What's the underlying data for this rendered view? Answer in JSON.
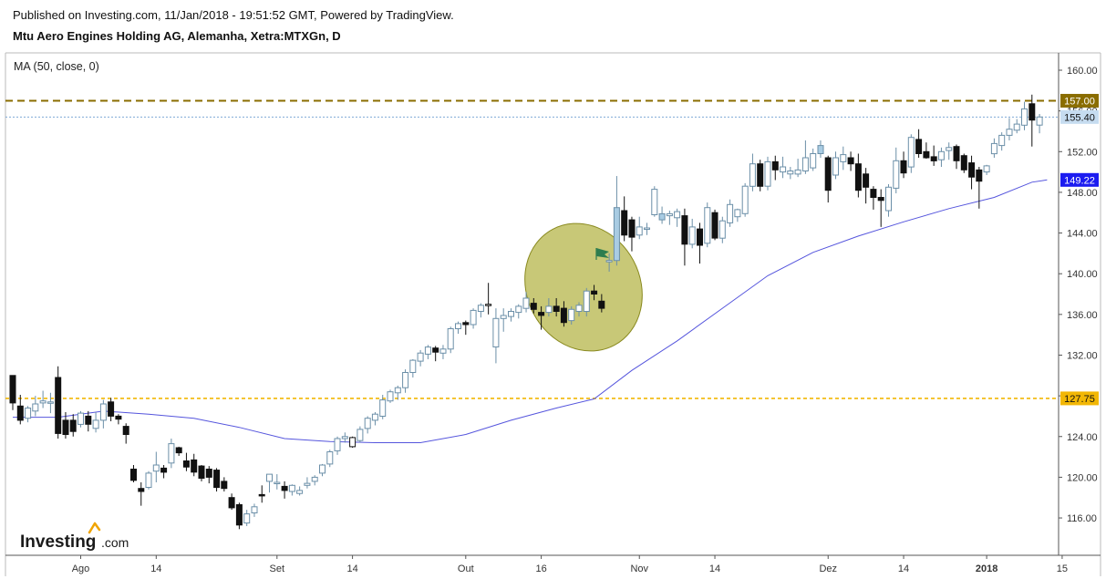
{
  "header": {
    "published": "Published on Investing.com, 11/Jan/2018 - 19:51:52 GMT, Powered by TradingView.",
    "title": "Mtu Aero Engines Holding AG, Alemanha, Xetra:MTXGn, D"
  },
  "indicator_label": "MA (50, close, 0)",
  "logo": {
    "word": "Investing",
    "suffix": ".com"
  },
  "colors": {
    "up_fill": "#ffffff",
    "up_blue_fill": "#a9cce3",
    "candle_border": "#6b8fa8",
    "down_fill": "#111111",
    "ma_line": "#5555dd",
    "resistance_line": "#8a6d00",
    "support_line": "#f2b705",
    "last_price_line": "#7fa9d8",
    "ellipse_fill": "#b5b54a",
    "flag": "#2e7d4f"
  },
  "chart_data": {
    "type": "candlestick",
    "ylim": [
      112,
      162
    ],
    "y_ticks": [
      116,
      120,
      124,
      128,
      132,
      136,
      140,
      144,
      148,
      152,
      156,
      160
    ],
    "x_ticks": [
      {
        "label": "Ago",
        "i": 9
      },
      {
        "label": "14",
        "i": 19
      },
      {
        "label": "Set",
        "i": 35
      },
      {
        "label": "14",
        "i": 45
      },
      {
        "label": "Out",
        "i": 60
      },
      {
        "label": "16",
        "i": 70
      },
      {
        "label": "Nov",
        "i": 83
      },
      {
        "label": "14",
        "i": 93
      },
      {
        "label": "Dez",
        "i": 108
      },
      {
        "label": "14",
        "i": 118
      },
      {
        "label": "2018",
        "i": 129
      },
      {
        "label": "15",
        "i": 139
      }
    ],
    "horizontal_lines": [
      {
        "price": 157.0,
        "label": "157.00",
        "style": "dashed"
      },
      {
        "price": 155.4,
        "label": "155.40",
        "style": "dotted"
      },
      {
        "price": 127.75,
        "label": "127.75",
        "style": "dashed"
      }
    ],
    "ma_last_label": "149.22",
    "candles": [
      {
        "o": 130.0,
        "h": 130.0,
        "c": 127.3,
        "l": 126.6
      },
      {
        "o": 127.0,
        "h": 128.1,
        "c": 125.6,
        "l": 125.2
      },
      {
        "o": 125.8,
        "h": 127.0,
        "c": 126.8,
        "l": 125.4
      },
      {
        "o": 126.5,
        "h": 128.0,
        "c": 127.2,
        "l": 126.0
      },
      {
        "o": 127.3,
        "h": 128.5,
        "c": 127.5,
        "l": 126.8
      },
      {
        "o": 127.4,
        "h": 128.3,
        "c": 127.4,
        "l": 126.3
      },
      {
        "o": 129.8,
        "h": 130.9,
        "c": 124.3,
        "l": 123.8
      },
      {
        "o": 125.6,
        "h": 126.4,
        "c": 124.2,
        "l": 123.8
      },
      {
        "o": 125.6,
        "h": 126.2,
        "c": 124.5,
        "l": 124.0
      },
      {
        "o": 125.2,
        "h": 126.5,
        "c": 126.3,
        "l": 124.9
      },
      {
        "o": 126.0,
        "h": 126.5,
        "c": 125.2,
        "l": 124.5
      },
      {
        "o": 124.8,
        "h": 126.4,
        "c": 125.6,
        "l": 124.4
      },
      {
        "o": 125.6,
        "h": 127.6,
        "c": 127.2,
        "l": 124.8
      },
      {
        "o": 127.4,
        "h": 127.8,
        "c": 126.0,
        "l": 125.5
      },
      {
        "o": 126.0,
        "h": 126.2,
        "c": 125.7,
        "l": 125.2
      },
      {
        "o": 125.0,
        "h": 125.3,
        "c": 124.2,
        "l": 123.3
      },
      {
        "o": 120.8,
        "h": 121.2,
        "c": 119.7,
        "l": 119.5
      },
      {
        "o": 118.9,
        "h": 119.5,
        "c": 118.6,
        "l": 117.2
      },
      {
        "o": 119.0,
        "h": 120.6,
        "c": 120.4,
        "l": 118.8
      },
      {
        "o": 120.6,
        "h": 122.5,
        "c": 121.2,
        "l": 119.5
      },
      {
        "o": 120.9,
        "h": 121.2,
        "c": 120.5,
        "l": 119.9
      },
      {
        "o": 121.4,
        "h": 123.8,
        "c": 123.3,
        "l": 120.9
      },
      {
        "o": 122.9,
        "h": 123.0,
        "c": 122.4,
        "l": 122.1
      },
      {
        "o": 121.6,
        "h": 122.4,
        "c": 121.0,
        "l": 120.6
      },
      {
        "o": 121.7,
        "h": 122.3,
        "c": 120.5,
        "l": 120.1
      },
      {
        "o": 121.1,
        "h": 121.2,
        "c": 119.9,
        "l": 119.6
      },
      {
        "o": 120.8,
        "h": 121.1,
        "c": 120.0,
        "l": 119.4
      },
      {
        "o": 120.7,
        "h": 120.9,
        "c": 119.0,
        "l": 118.6
      },
      {
        "o": 119.6,
        "h": 120.0,
        "c": 118.9,
        "l": 118.6
      },
      {
        "o": 118.0,
        "h": 118.4,
        "c": 117.0,
        "l": 116.8
      },
      {
        "o": 117.3,
        "h": 117.5,
        "c": 115.3,
        "l": 114.9
      },
      {
        "o": 115.5,
        "h": 116.8,
        "c": 116.4,
        "l": 115.2
      },
      {
        "o": 116.5,
        "h": 117.4,
        "c": 117.1,
        "l": 116.1
      },
      {
        "o": 118.3,
        "h": 119.2,
        "c": 118.2,
        "l": 117.5
      },
      {
        "o": 119.6,
        "h": 120.3,
        "c": 120.3,
        "l": 118.5
      },
      {
        "o": 119.5,
        "h": 120.3,
        "c": 119.5,
        "l": 118.8
      },
      {
        "o": 119.1,
        "h": 119.6,
        "c": 118.7,
        "l": 117.9
      },
      {
        "o": 118.6,
        "h": 119.3,
        "c": 119.2,
        "l": 118.2
      },
      {
        "o": 118.4,
        "h": 119.1,
        "c": 118.7,
        "l": 118.2
      },
      {
        "o": 119.2,
        "h": 120.0,
        "c": 119.4,
        "l": 118.9
      },
      {
        "o": 119.6,
        "h": 120.2,
        "c": 120.0,
        "l": 119.2
      },
      {
        "o": 120.4,
        "h": 121.3,
        "c": 121.2,
        "l": 120.1
      },
      {
        "o": 121.3,
        "h": 122.7,
        "c": 122.5,
        "l": 121.0
      },
      {
        "o": 122.6,
        "h": 124.0,
        "c": 123.8,
        "l": 122.2
      },
      {
        "o": 123.8,
        "h": 124.4,
        "c": 124.0,
        "l": 123.4
      },
      {
        "o": 123.0,
        "h": 124.0,
        "c": 123.9,
        "l": 122.9
      },
      {
        "o": 123.6,
        "h": 125.0,
        "c": 124.7,
        "l": 123.4
      },
      {
        "o": 124.8,
        "h": 126.0,
        "c": 125.8,
        "l": 124.3
      },
      {
        "o": 125.6,
        "h": 126.4,
        "c": 126.2,
        "l": 125.1
      },
      {
        "o": 126.0,
        "h": 128.1,
        "c": 127.6,
        "l": 125.7
      },
      {
        "o": 127.5,
        "h": 128.6,
        "c": 128.4,
        "l": 127.3
      },
      {
        "o": 128.3,
        "h": 129.0,
        "c": 128.8,
        "l": 127.6
      },
      {
        "o": 128.8,
        "h": 130.6,
        "c": 130.3,
        "l": 128.3
      },
      {
        "o": 130.3,
        "h": 131.6,
        "c": 131.5,
        "l": 129.8
      },
      {
        "o": 131.4,
        "h": 132.5,
        "c": 132.2,
        "l": 130.9
      },
      {
        "o": 132.1,
        "h": 133.0,
        "c": 132.8,
        "l": 131.6
      },
      {
        "o": 132.7,
        "h": 132.9,
        "c": 132.3,
        "l": 131.4
      },
      {
        "o": 132.2,
        "h": 133.0,
        "c": 132.6,
        "l": 131.6
      },
      {
        "o": 132.6,
        "h": 134.8,
        "c": 134.6,
        "l": 132.2
      },
      {
        "o": 134.6,
        "h": 135.3,
        "c": 135.1,
        "l": 134.1
      },
      {
        "o": 135.2,
        "h": 135.4,
        "c": 135.0,
        "l": 134.0
      },
      {
        "o": 135.0,
        "h": 136.6,
        "c": 136.4,
        "l": 134.6
      },
      {
        "o": 136.3,
        "h": 137.1,
        "c": 136.9,
        "l": 135.7
      },
      {
        "o": 136.9,
        "h": 139.1,
        "c": 137.0,
        "l": 136.0
      },
      {
        "o": 132.8,
        "h": 136.6,
        "c": 135.6,
        "l": 131.2
      },
      {
        "o": 135.6,
        "h": 136.6,
        "c": 135.9,
        "l": 134.3
      },
      {
        "o": 135.8,
        "h": 136.6,
        "c": 136.3,
        "l": 135.3
      },
      {
        "o": 136.2,
        "h": 137.0,
        "c": 136.8,
        "l": 135.6
      },
      {
        "o": 136.6,
        "h": 138.2,
        "c": 137.6,
        "l": 136.2
      },
      {
        "o": 137.1,
        "h": 137.6,
        "c": 136.5,
        "l": 136.1
      },
      {
        "o": 136.2,
        "h": 136.8,
        "c": 135.9,
        "l": 134.5
      },
      {
        "o": 136.2,
        "h": 137.6,
        "c": 136.8,
        "l": 135.8
      },
      {
        "o": 136.8,
        "h": 137.6,
        "c": 136.3,
        "l": 135.8
      },
      {
        "o": 136.6,
        "h": 137.3,
        "c": 135.2,
        "l": 134.8
      },
      {
        "o": 135.4,
        "h": 136.8,
        "c": 136.5,
        "l": 135.0
      },
      {
        "o": 136.3,
        "h": 137.2,
        "c": 136.9,
        "l": 135.8
      },
      {
        "o": 136.3,
        "h": 138.6,
        "c": 138.3,
        "l": 135.8
      },
      {
        "o": 138.3,
        "h": 138.9,
        "c": 138.0,
        "l": 137.4
      },
      {
        "o": 137.3,
        "h": 138.0,
        "c": 136.6,
        "l": 136.2
      },
      {
        "o": 141.2,
        "h": 142.0,
        "c": 141.3,
        "l": 140.2
      },
      {
        "o": 141.3,
        "h": 149.6,
        "c": 146.5,
        "l": 140.8
      },
      {
        "o": 146.2,
        "h": 147.6,
        "c": 143.8,
        "l": 143.2
      },
      {
        "o": 145.3,
        "h": 145.6,
        "c": 143.6,
        "l": 142.2
      },
      {
        "o": 143.8,
        "h": 145.6,
        "c": 144.6,
        "l": 143.4
      },
      {
        "o": 144.4,
        "h": 145.0,
        "c": 144.5,
        "l": 143.8
      },
      {
        "o": 145.8,
        "h": 148.6,
        "c": 148.3,
        "l": 145.6
      },
      {
        "o": 145.3,
        "h": 146.6,
        "c": 145.9,
        "l": 144.9
      },
      {
        "o": 145.7,
        "h": 146.2,
        "c": 145.9,
        "l": 144.8
      },
      {
        "o": 145.5,
        "h": 146.4,
        "c": 146.1,
        "l": 144.6
      },
      {
        "o": 145.7,
        "h": 146.4,
        "c": 142.9,
        "l": 140.8
      },
      {
        "o": 142.9,
        "h": 145.4,
        "c": 144.6,
        "l": 142.5
      },
      {
        "o": 144.4,
        "h": 145.0,
        "c": 142.8,
        "l": 141.0
      },
      {
        "o": 143.0,
        "h": 147.0,
        "c": 146.5,
        "l": 142.6
      },
      {
        "o": 146.0,
        "h": 146.3,
        "c": 143.5,
        "l": 143.3
      },
      {
        "o": 143.5,
        "h": 145.6,
        "c": 145.2,
        "l": 143.0
      },
      {
        "o": 145.0,
        "h": 147.3,
        "c": 146.8,
        "l": 144.6
      },
      {
        "o": 145.6,
        "h": 146.4,
        "c": 146.3,
        "l": 145.1
      },
      {
        "o": 145.9,
        "h": 148.9,
        "c": 148.6,
        "l": 145.6
      },
      {
        "o": 148.6,
        "h": 151.8,
        "c": 150.8,
        "l": 148.1
      },
      {
        "o": 150.8,
        "h": 151.2,
        "c": 148.6,
        "l": 148.1
      },
      {
        "o": 148.6,
        "h": 151.5,
        "c": 151.0,
        "l": 148.2
      },
      {
        "o": 151.0,
        "h": 151.6,
        "c": 150.2,
        "l": 149.2
      },
      {
        "o": 150.0,
        "h": 151.5,
        "c": 150.5,
        "l": 149.4
      },
      {
        "o": 149.8,
        "h": 150.5,
        "c": 150.1,
        "l": 149.3
      },
      {
        "o": 149.8,
        "h": 151.3,
        "c": 150.2,
        "l": 149.5
      },
      {
        "o": 150.1,
        "h": 153.1,
        "c": 151.4,
        "l": 149.8
      },
      {
        "o": 150.4,
        "h": 152.3,
        "c": 151.8,
        "l": 150.1
      },
      {
        "o": 151.8,
        "h": 153.1,
        "c": 152.6,
        "l": 151.4
      },
      {
        "o": 151.4,
        "h": 151.6,
        "c": 148.2,
        "l": 147.0
      },
      {
        "o": 149.7,
        "h": 152.0,
        "c": 151.4,
        "l": 149.3
      },
      {
        "o": 151.0,
        "h": 152.5,
        "c": 151.7,
        "l": 150.2
      },
      {
        "o": 151.4,
        "h": 152.0,
        "c": 150.8,
        "l": 150.1
      },
      {
        "o": 150.8,
        "h": 151.8,
        "c": 148.2,
        "l": 147.5
      },
      {
        "o": 149.8,
        "h": 150.4,
        "c": 148.5,
        "l": 146.9
      },
      {
        "o": 148.3,
        "h": 148.6,
        "c": 147.5,
        "l": 146.3
      },
      {
        "o": 147.5,
        "h": 148.3,
        "c": 147.2,
        "l": 144.6
      },
      {
        "o": 146.2,
        "h": 148.8,
        "c": 148.5,
        "l": 145.6
      },
      {
        "o": 148.4,
        "h": 152.4,
        "c": 151.1,
        "l": 147.9
      },
      {
        "o": 151.1,
        "h": 152.0,
        "c": 149.9,
        "l": 149.4
      },
      {
        "o": 150.5,
        "h": 153.7,
        "c": 153.4,
        "l": 149.9
      },
      {
        "o": 153.2,
        "h": 154.2,
        "c": 151.8,
        "l": 151.4
      },
      {
        "o": 152.0,
        "h": 152.9,
        "c": 151.4,
        "l": 151.3
      },
      {
        "o": 151.5,
        "h": 152.6,
        "c": 151.1,
        "l": 150.6
      },
      {
        "o": 151.2,
        "h": 152.4,
        "c": 152.0,
        "l": 150.5
      },
      {
        "o": 152.1,
        "h": 152.9,
        "c": 152.4,
        "l": 151.2
      },
      {
        "o": 152.5,
        "h": 152.7,
        "c": 151.1,
        "l": 150.3
      },
      {
        "o": 151.6,
        "h": 151.8,
        "c": 150.2,
        "l": 149.9
      },
      {
        "o": 150.9,
        "h": 151.6,
        "c": 149.5,
        "l": 148.3
      },
      {
        "o": 150.2,
        "h": 150.5,
        "c": 149.1,
        "l": 146.4
      },
      {
        "o": 150.0,
        "h": 150.7,
        "c": 150.6,
        "l": 149.7
      },
      {
        "o": 151.8,
        "h": 153.3,
        "c": 152.8,
        "l": 151.4
      },
      {
        "o": 152.6,
        "h": 153.9,
        "c": 153.6,
        "l": 152.1
      },
      {
        "o": 153.6,
        "h": 155.3,
        "c": 154.2,
        "l": 153.1
      },
      {
        "o": 154.1,
        "h": 155.2,
        "c": 154.7,
        "l": 153.8
      },
      {
        "o": 154.6,
        "h": 156.9,
        "c": 156.2,
        "l": 154.1
      },
      {
        "o": 156.7,
        "h": 157.6,
        "c": 155.1,
        "l": 152.5
      },
      {
        "o": 154.6,
        "h": 155.7,
        "c": 155.4,
        "l": 153.8
      }
    ],
    "ma_points": [
      {
        "i": 0,
        "v": 125.9
      },
      {
        "i": 6,
        "v": 125.9
      },
      {
        "i": 12,
        "v": 126.5
      },
      {
        "i": 18,
        "v": 126.2
      },
      {
        "i": 24,
        "v": 125.8
      },
      {
        "i": 30,
        "v": 124.9
      },
      {
        "i": 36,
        "v": 123.8
      },
      {
        "i": 42,
        "v": 123.5
      },
      {
        "i": 48,
        "v": 123.4
      },
      {
        "i": 54,
        "v": 123.4
      },
      {
        "i": 60,
        "v": 124.2
      },
      {
        "i": 66,
        "v": 125.6
      },
      {
        "i": 72,
        "v": 126.8
      },
      {
        "i": 77,
        "v": 127.7
      },
      {
        "i": 82,
        "v": 130.5
      },
      {
        "i": 88,
        "v": 133.4
      },
      {
        "i": 94,
        "v": 136.6
      },
      {
        "i": 100,
        "v": 139.8
      },
      {
        "i": 106,
        "v": 142.1
      },
      {
        "i": 112,
        "v": 143.7
      },
      {
        "i": 118,
        "v": 145.1
      },
      {
        "i": 124,
        "v": 146.4
      },
      {
        "i": 130,
        "v": 147.5
      },
      {
        "i": 135,
        "v": 149.0
      },
      {
        "i": 137,
        "v": 149.22
      }
    ]
  }
}
